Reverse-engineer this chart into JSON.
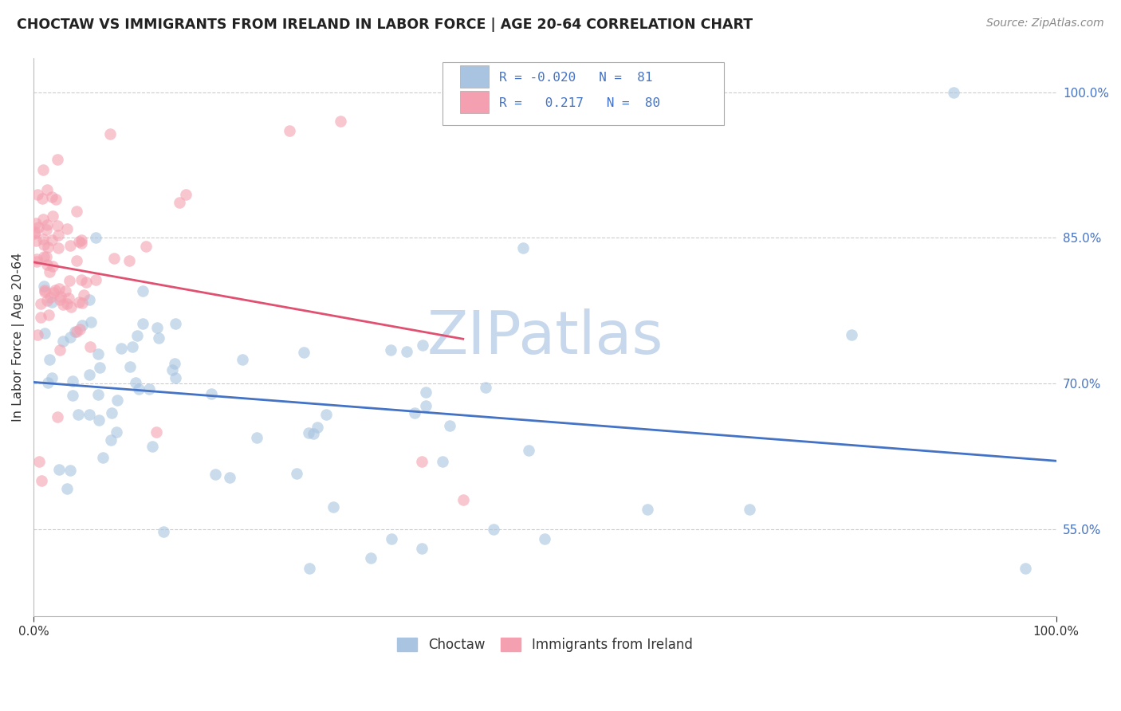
{
  "title": "CHOCTAW VS IMMIGRANTS FROM IRELAND IN LABOR FORCE | AGE 20-64 CORRELATION CHART",
  "source": "Source: ZipAtlas.com",
  "ylabel": "In Labor Force | Age 20-64",
  "xlim": [
    0.0,
    1.0
  ],
  "ylim": [
    0.46,
    1.035
  ],
  "yticks": [
    0.55,
    0.7,
    0.85,
    1.0
  ],
  "ytick_labels": [
    "55.0%",
    "70.0%",
    "85.0%",
    "100.0%"
  ],
  "r_choctaw": -0.02,
  "n_choctaw": 81,
  "r_ireland": 0.217,
  "n_ireland": 80,
  "choctaw_color": "#a8c4e0",
  "ireland_color": "#f4a0b0",
  "choctaw_line_color": "#4472c4",
  "ireland_line_color": "#e05070",
  "watermark": "ZIPatlas",
  "watermark_color": "#c8d8ec",
  "background_color": "#ffffff",
  "ytick_color": "#4472c4",
  "grid_color": "#cccccc",
  "title_color": "#222222",
  "source_color": "#888888",
  "ylabel_color": "#333333"
}
